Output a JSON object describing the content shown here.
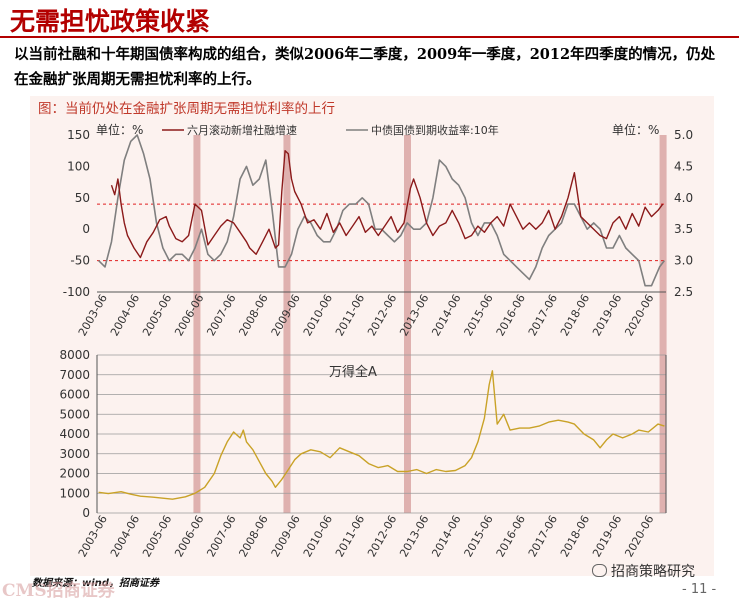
{
  "header": {
    "title": "无需担忧政策收紧"
  },
  "intro": {
    "text": "以当前社融和十年期国债率构成的组合，类似2006年二季度，2009年一季度，2012年四季度的情况，仍处在金融扩张周期无需担忧利率的上行。"
  },
  "figure": {
    "title": "图：当前仍处在金融扩张周期无需担忧利率的上行"
  },
  "footer": {
    "source": "数据来源：wind，招商证券",
    "logo": "CMS招商证券",
    "brand": "招商策略研究",
    "page": "- 11 -"
  },
  "colors": {
    "social_financing": "#8b1a1a",
    "bond_yield": "#7f7f7f",
    "wind_a": "#c9a227",
    "band": "#d9a6a3",
    "threshold": "#e02020",
    "title_red": "#b30000"
  },
  "icons": {
    "brand": "wechat-bubble-icon"
  },
  "chart_data": [
    {
      "type": "line",
      "title": "",
      "ylabel_left": "单位：%",
      "ylabel_right": "单位：%",
      "ylim_left": [
        -100,
        150
      ],
      "ylim_right": [
        2.5,
        5.0
      ],
      "yticks_left": [
        -100,
        -50,
        0,
        50,
        100,
        150
      ],
      "yticks_right": [
        "2.5",
        "3.0",
        "3.5",
        "4.0",
        "4.5",
        "5.0"
      ],
      "x_ticks": [
        "2003-06",
        "2004-06",
        "2005-06",
        "2006-06",
        "2007-06",
        "2008-06",
        "2009-06",
        "2010-06",
        "2011-06",
        "2012-06",
        "2013-06",
        "2014-06",
        "2015-06",
        "2016-06",
        "2017-06",
        "2018-06",
        "2019-06",
        "2020-06"
      ],
      "x_range": [
        2003.25,
        2020.95
      ],
      "highlight_periods": [
        [
          2006.25,
          2006.42
        ],
        [
          2009.05,
          2009.22
        ],
        [
          2012.8,
          2012.97
        ],
        [
          2020.75,
          2020.92
        ]
      ],
      "reference_lines": [
        40,
        -50
      ],
      "legend_position": "top",
      "series": [
        {
          "name": "六月滚动新增社融增速",
          "axis": "left",
          "x": [
            2003.7,
            2003.8,
            2003.9,
            2004.0,
            2004.1,
            2004.2,
            2004.4,
            2004.6,
            2004.8,
            2005.0,
            2005.2,
            2005.4,
            2005.5,
            2005.7,
            2005.9,
            2006.1,
            2006.3,
            2006.5,
            2006.7,
            2006.9,
            2007.1,
            2007.3,
            2007.5,
            2007.7,
            2007.9,
            2008.0,
            2008.2,
            2008.4,
            2008.6,
            2008.8,
            2008.9,
            2009.0,
            2009.1,
            2009.2,
            2009.3,
            2009.4,
            2009.6,
            2009.8,
            2010.0,
            2010.2,
            2010.4,
            2010.6,
            2010.8,
            2011.0,
            2011.2,
            2011.4,
            2011.6,
            2011.8,
            2012.0,
            2012.2,
            2012.4,
            2012.6,
            2012.8,
            2013.0,
            2013.1,
            2013.3,
            2013.5,
            2013.7,
            2013.9,
            2014.1,
            2014.3,
            2014.5,
            2014.7,
            2014.9,
            2015.1,
            2015.3,
            2015.5,
            2015.7,
            2015.9,
            2016.1,
            2016.3,
            2016.5,
            2016.7,
            2016.9,
            2017.1,
            2017.3,
            2017.5,
            2017.7,
            2017.9,
            2018.1,
            2018.3,
            2018.5,
            2018.7,
            2018.9,
            2019.1,
            2019.3,
            2019.5,
            2019.7,
            2019.9,
            2020.1,
            2020.3,
            2020.5,
            2020.7,
            2020.85
          ],
          "values": [
            70,
            55,
            80,
            40,
            10,
            -10,
            -30,
            -45,
            -20,
            -5,
            15,
            20,
            5,
            -15,
            -20,
            -10,
            40,
            30,
            -25,
            -10,
            5,
            15,
            10,
            -5,
            -20,
            -30,
            -40,
            -20,
            0,
            -30,
            -25,
            60,
            125,
            120,
            80,
            60,
            40,
            10,
            15,
            0,
            25,
            -5,
            10,
            -10,
            5,
            20,
            -5,
            5,
            -10,
            5,
            20,
            -5,
            10,
            65,
            80,
            50,
            10,
            -10,
            5,
            10,
            30,
            10,
            -15,
            -10,
            5,
            -5,
            10,
            20,
            5,
            40,
            20,
            0,
            10,
            0,
            10,
            30,
            0,
            20,
            50,
            90,
            20,
            10,
            0,
            -10,
            -15,
            10,
            20,
            0,
            25,
            5,
            35,
            20,
            30,
            40
          ]
        },
        {
          "name": "中债国债到期收益率:10年",
          "axis": "right",
          "x": [
            2003.3,
            2003.5,
            2003.7,
            2003.9,
            2004.1,
            2004.3,
            2004.5,
            2004.7,
            2004.9,
            2005.1,
            2005.3,
            2005.5,
            2005.7,
            2005.9,
            2006.1,
            2006.3,
            2006.5,
            2006.7,
            2006.9,
            2007.1,
            2007.3,
            2007.5,
            2007.7,
            2007.9,
            2008.1,
            2008.3,
            2008.5,
            2008.7,
            2008.9,
            2009.1,
            2009.3,
            2009.5,
            2009.7,
            2009.9,
            2010.1,
            2010.3,
            2010.5,
            2010.7,
            2010.9,
            2011.1,
            2011.3,
            2011.5,
            2011.7,
            2011.9,
            2012.1,
            2012.3,
            2012.5,
            2012.7,
            2012.9,
            2013.1,
            2013.3,
            2013.5,
            2013.7,
            2013.9,
            2014.1,
            2014.3,
            2014.5,
            2014.7,
            2014.9,
            2015.1,
            2015.3,
            2015.5,
            2015.7,
            2015.9,
            2016.1,
            2016.3,
            2016.5,
            2016.7,
            2016.9,
            2017.1,
            2017.3,
            2017.5,
            2017.7,
            2017.9,
            2018.1,
            2018.3,
            2018.5,
            2018.7,
            2018.9,
            2019.1,
            2019.3,
            2019.5,
            2019.7,
            2019.9,
            2020.1,
            2020.3,
            2020.5,
            2020.75,
            2020.9
          ],
          "values": [
            3.0,
            2.9,
            3.3,
            4.0,
            4.6,
            4.9,
            5.0,
            4.7,
            4.3,
            3.6,
            3.2,
            3.0,
            3.1,
            3.1,
            3.0,
            3.2,
            3.5,
            3.1,
            3.0,
            3.1,
            3.3,
            3.7,
            4.3,
            4.5,
            4.2,
            4.3,
            4.6,
            3.8,
            2.9,
            2.9,
            3.1,
            3.5,
            3.7,
            3.6,
            3.4,
            3.3,
            3.3,
            3.5,
            3.8,
            3.9,
            3.9,
            4.0,
            3.9,
            3.5,
            3.5,
            3.4,
            3.3,
            3.4,
            3.6,
            3.5,
            3.5,
            3.6,
            4.0,
            4.6,
            4.5,
            4.3,
            4.2,
            4.0,
            3.6,
            3.4,
            3.6,
            3.6,
            3.4,
            3.1,
            3.0,
            2.9,
            2.8,
            2.7,
            2.9,
            3.2,
            3.4,
            3.5,
            3.6,
            3.9,
            3.9,
            3.7,
            3.5,
            3.6,
            3.5,
            3.2,
            3.2,
            3.4,
            3.2,
            3.1,
            3.0,
            2.6,
            2.6,
            2.9,
            3.0
          ]
        }
      ]
    },
    {
      "type": "line",
      "title": "",
      "ylim": [
        0,
        8000
      ],
      "yticks": [
        0,
        1000,
        2000,
        3000,
        4000,
        5000,
        6000,
        7000,
        8000
      ],
      "x_ticks": [
        "2003-06",
        "2004-06",
        "2005-06",
        "2006-06",
        "2007-06",
        "2008-06",
        "2009-06",
        "2010-06",
        "2011-06",
        "2012-06",
        "2013-06",
        "2014-06",
        "2015-06",
        "2016-06",
        "2017-06",
        "2018-06",
        "2019-06",
        "2020-06"
      ],
      "x_range": [
        2003.25,
        2020.95
      ],
      "highlight_periods": [
        [
          2006.25,
          2006.42
        ],
        [
          2009.05,
          2009.22
        ],
        [
          2012.8,
          2012.97
        ],
        [
          2020.75,
          2020.92
        ]
      ],
      "series": [
        {
          "name": "万得全A",
          "axis": "left",
          "x": [
            2003.3,
            2003.6,
            2004.0,
            2004.3,
            2004.6,
            2005.0,
            2005.3,
            2005.6,
            2006.0,
            2006.3,
            2006.6,
            2006.9,
            2007.1,
            2007.3,
            2007.5,
            2007.7,
            2007.8,
            2007.9,
            2008.1,
            2008.3,
            2008.5,
            2008.7,
            2008.8,
            2009.0,
            2009.2,
            2009.4,
            2009.6,
            2009.9,
            2010.2,
            2010.5,
            2010.8,
            2011.1,
            2011.4,
            2011.7,
            2012.0,
            2012.3,
            2012.6,
            2012.9,
            2013.2,
            2013.5,
            2013.8,
            2014.1,
            2014.4,
            2014.7,
            2014.9,
            2015.1,
            2015.3,
            2015.45,
            2015.55,
            2015.7,
            2015.9,
            2016.1,
            2016.4,
            2016.7,
            2017.0,
            2017.3,
            2017.6,
            2017.9,
            2018.1,
            2018.4,
            2018.7,
            2018.9,
            2019.1,
            2019.3,
            2019.6,
            2019.9,
            2020.1,
            2020.4,
            2020.7,
            2020.9
          ],
          "values": [
            1050,
            980,
            1080,
            950,
            850,
            800,
            750,
            700,
            820,
            1000,
            1300,
            2000,
            2900,
            3600,
            4100,
            3800,
            4200,
            3600,
            3200,
            2600,
            2000,
            1600,
            1300,
            1700,
            2200,
            2700,
            3000,
            3200,
            3100,
            2800,
            3300,
            3100,
            2900,
            2500,
            2300,
            2400,
            2100,
            2100,
            2200,
            2000,
            2200,
            2100,
            2150,
            2400,
            2800,
            3600,
            4800,
            6500,
            7200,
            4500,
            5000,
            4200,
            4300,
            4300,
            4400,
            4600,
            4700,
            4600,
            4500,
            4000,
            3700,
            3300,
            3700,
            4000,
            3800,
            4000,
            4200,
            4100,
            4500,
            4400
          ]
        }
      ]
    }
  ]
}
